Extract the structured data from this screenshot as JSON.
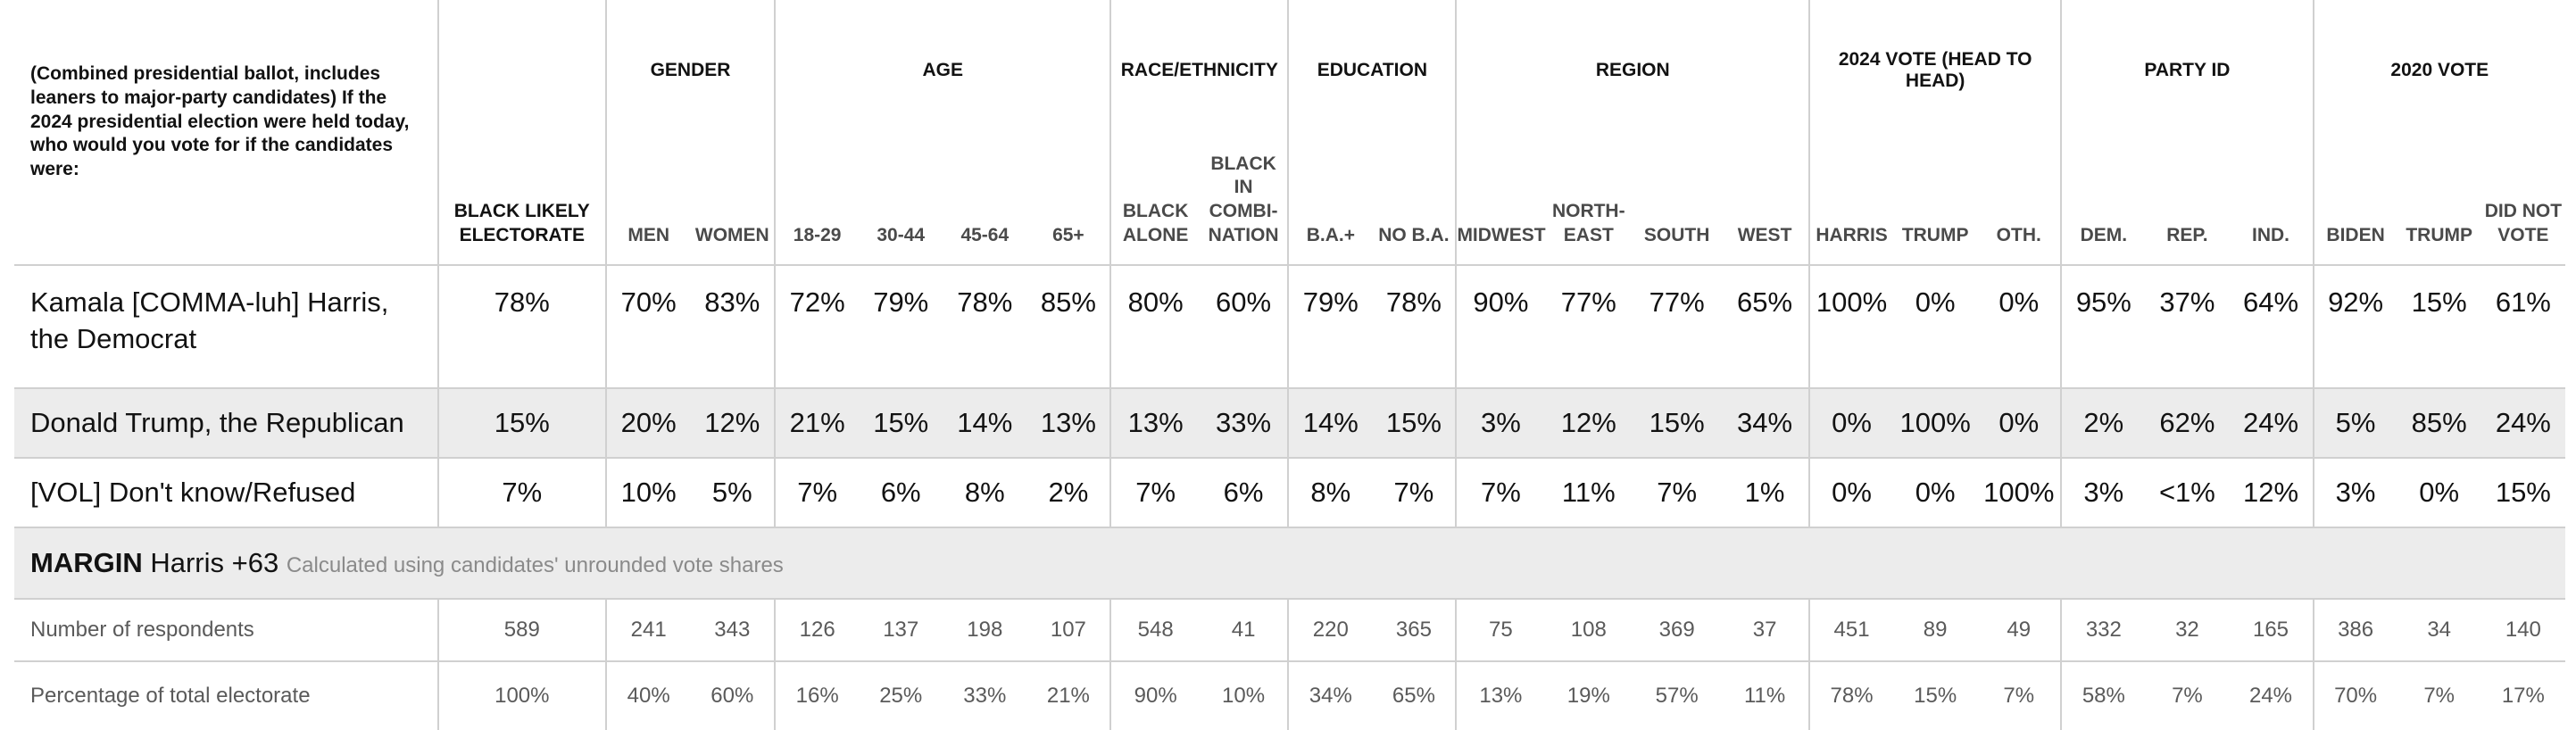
{
  "question": {
    "prefix": "(Combined presidential ballot, includes leaners to major-party candidates) ",
    "bold": "If the 2024 presidential election were held today, who would you vote for if the candidates were:"
  },
  "groups": [
    {
      "label": "",
      "columns": [
        "BLACK LIKELY ELECTORATE"
      ]
    },
    {
      "label": "GENDER",
      "columns": [
        "MEN",
        "WOMEN"
      ]
    },
    {
      "label": "AGE",
      "columns": [
        "18-29",
        "30-44",
        "45-64",
        "65+"
      ]
    },
    {
      "label": "RACE/ETHNICITY",
      "columns": [
        "BLACK ALONE",
        "BLACK IN COMBI-NATION"
      ]
    },
    {
      "label": "EDUCATION",
      "columns": [
        "B.A.+",
        "NO B.A."
      ]
    },
    {
      "label": "REGION",
      "columns": [
        "MIDWEST",
        "NORTH-EAST",
        "SOUTH",
        "WEST"
      ]
    },
    {
      "label": "2024 VOTE (HEAD TO HEAD)",
      "columns": [
        "HARRIS",
        "TRUMP",
        "OTH."
      ]
    },
    {
      "label": "PARTY ID",
      "columns": [
        "DEM.",
        "REP.",
        "IND."
      ]
    },
    {
      "label": "2020 VOTE",
      "columns": [
        "BIDEN",
        "TRUMP",
        "DID NOT VOTE"
      ]
    }
  ],
  "rows": [
    {
      "label": "Kamala [COMMA-luh] Harris, the Democrat",
      "values": [
        "78%",
        "70%",
        "83%",
        "72%",
        "79%",
        "78%",
        "85%",
        "80%",
        "60%",
        "79%",
        "78%",
        "90%",
        "77%",
        "77%",
        "65%",
        "100%",
        "0%",
        "0%",
        "95%",
        "37%",
        "64%",
        "92%",
        "15%",
        "61%"
      ]
    },
    {
      "label": "Donald Trump, the Republican",
      "values": [
        "15%",
        "20%",
        "12%",
        "21%",
        "15%",
        "14%",
        "13%",
        "13%",
        "33%",
        "14%",
        "15%",
        "3%",
        "12%",
        "15%",
        "34%",
        "0%",
        "100%",
        "0%",
        "2%",
        "62%",
        "24%",
        "5%",
        "85%",
        "24%"
      ]
    },
    {
      "label": "[VOL] Don't know/Refused",
      "values": [
        "7%",
        "10%",
        "5%",
        "7%",
        "6%",
        "8%",
        "2%",
        "7%",
        "6%",
        "8%",
        "7%",
        "7%",
        "11%",
        "7%",
        "1%",
        "0%",
        "0%",
        "100%",
        "3%",
        "<1%",
        "12%",
        "3%",
        "0%",
        "15%"
      ]
    }
  ],
  "margin": {
    "label": "MARGIN",
    "value": "Harris +63",
    "note": "Calculated using candidates' unrounded vote shares"
  },
  "stats": [
    {
      "label": "Number of respondents",
      "values": [
        "589",
        "241",
        "343",
        "126",
        "137",
        "198",
        "107",
        "548",
        "41",
        "220",
        "365",
        "75",
        "108",
        "369",
        "37",
        "451",
        "89",
        "49",
        "332",
        "32",
        "165",
        "386",
        "34",
        "140"
      ]
    },
    {
      "label": "Percentage of total electorate",
      "values": [
        "100%",
        "40%",
        "60%",
        "16%",
        "25%",
        "33%",
        "21%",
        "90%",
        "10%",
        "34%",
        "65%",
        "13%",
        "19%",
        "57%",
        "11%",
        "78%",
        "15%",
        "7%",
        "58%",
        "7%",
        "24%",
        "70%",
        "7%",
        "17%"
      ]
    }
  ],
  "colors": {
    "border": "#d0d0d0",
    "shade": "#ececec",
    "note": "#8a8a8a",
    "stat_text": "#5a5a5a"
  }
}
